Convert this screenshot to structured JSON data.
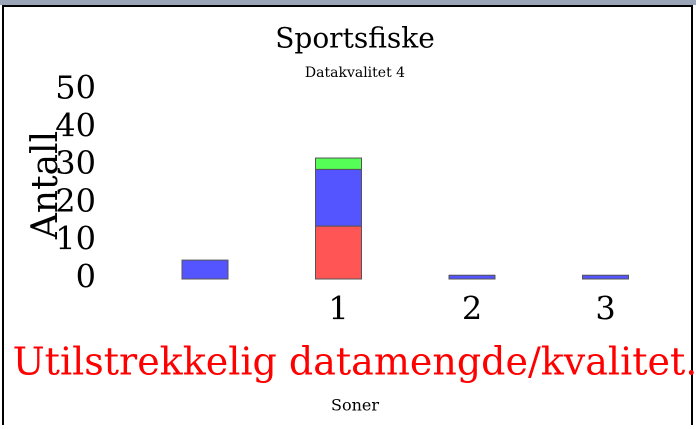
{
  "chart_data": {
    "type": "stacked_bar",
    "title": "Sportsfiske",
    "subtitle": "Datakvalitet 4",
    "y_label": "Antall",
    "x_label": "Soner",
    "annotation": "Utilstrekkelig datamengde/kvalitet.",
    "categories": [
      null,
      "1",
      "2",
      "3"
    ],
    "series": [
      {
        "color": "#ff5555",
        "values": [
          0,
          14,
          0,
          0
        ]
      },
      {
        "color": "#5555ff",
        "values": [
          5,
          15,
          1,
          1
        ]
      },
      {
        "color": "#55ff55",
        "values": [
          0,
          3,
          0,
          0
        ]
      }
    ],
    "ylim": [
      0,
      50
    ],
    "yticks": [
      0,
      10,
      20,
      30,
      40,
      50
    ],
    "grid": false
  }
}
